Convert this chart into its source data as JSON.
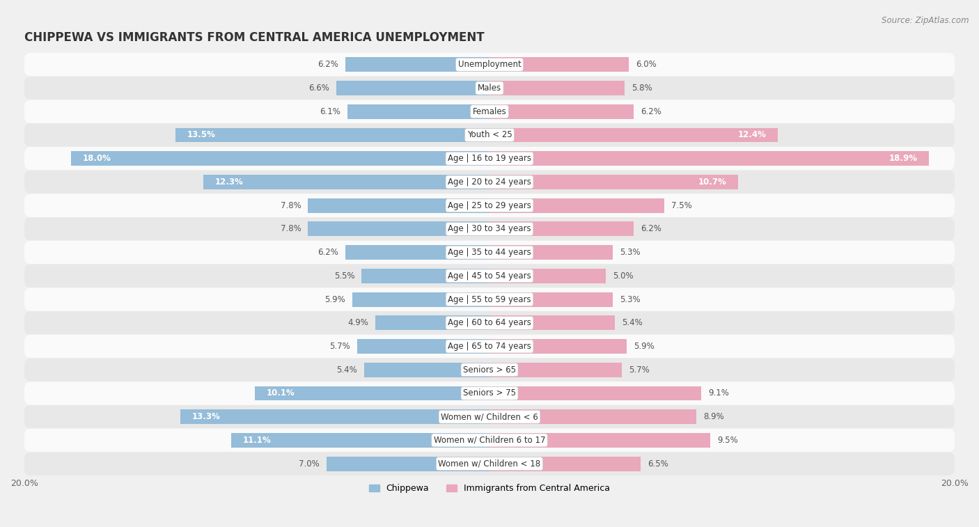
{
  "title": "CHIPPEWA VS IMMIGRANTS FROM CENTRAL AMERICA UNEMPLOYMENT",
  "source": "Source: ZipAtlas.com",
  "categories": [
    "Unemployment",
    "Males",
    "Females",
    "Youth < 25",
    "Age | 16 to 19 years",
    "Age | 20 to 24 years",
    "Age | 25 to 29 years",
    "Age | 30 to 34 years",
    "Age | 35 to 44 years",
    "Age | 45 to 54 years",
    "Age | 55 to 59 years",
    "Age | 60 to 64 years",
    "Age | 65 to 74 years",
    "Seniors > 65",
    "Seniors > 75",
    "Women w/ Children < 6",
    "Women w/ Children 6 to 17",
    "Women w/ Children < 18"
  ],
  "chippewa": [
    6.2,
    6.6,
    6.1,
    13.5,
    18.0,
    12.3,
    7.8,
    7.8,
    6.2,
    5.5,
    5.9,
    4.9,
    5.7,
    5.4,
    10.1,
    13.3,
    11.1,
    7.0
  ],
  "immigrants": [
    6.0,
    5.8,
    6.2,
    12.4,
    18.9,
    10.7,
    7.5,
    6.2,
    5.3,
    5.0,
    5.3,
    5.4,
    5.9,
    5.7,
    9.1,
    8.9,
    9.5,
    6.5
  ],
  "chippewa_color": "#95bcd9",
  "immigrants_color": "#e9a8bb",
  "background_color": "#f0f0f0",
  "row_color_light": "#fafafa",
  "row_color_dark": "#e8e8e8",
  "axis_limit": 20.0,
  "legend_label_chippewa": "Chippewa",
  "legend_label_immigrants": "Immigrants from Central America",
  "title_fontsize": 12,
  "source_fontsize": 8.5,
  "label_fontsize": 8.5,
  "tick_fontsize": 9,
  "bar_height": 0.62
}
